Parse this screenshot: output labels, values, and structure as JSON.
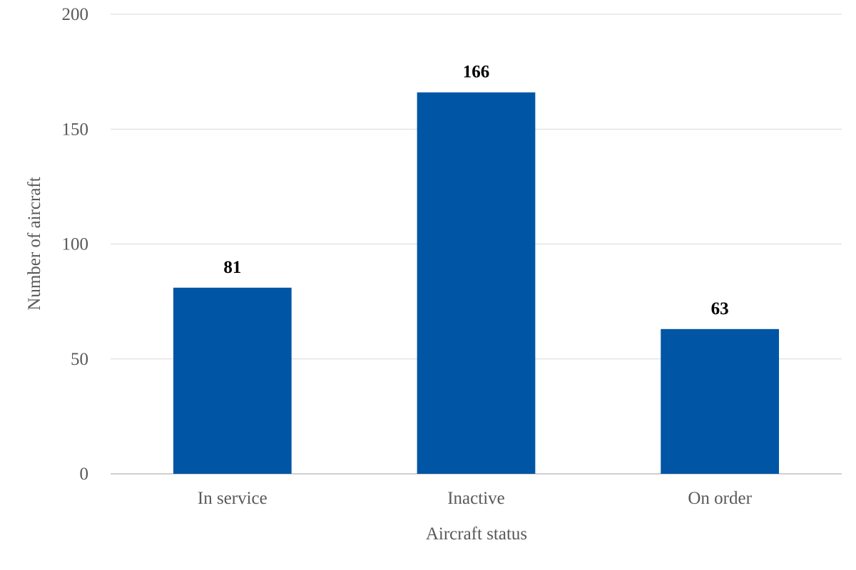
{
  "chart_data": {
    "type": "bar",
    "categories": [
      "In service",
      "Inactive",
      "On order"
    ],
    "values": [
      81,
      166,
      63
    ],
    "xlabel": "Aircraft status",
    "ylabel": "Number of aircraft",
    "ylim": [
      0,
      200
    ],
    "yticks": [
      "0",
      "50",
      "100",
      "150",
      "200"
    ],
    "data_labels": [
      "81",
      "166",
      "63"
    ],
    "bar_color": "#0055A5",
    "grid": true,
    "legend": "none"
  }
}
